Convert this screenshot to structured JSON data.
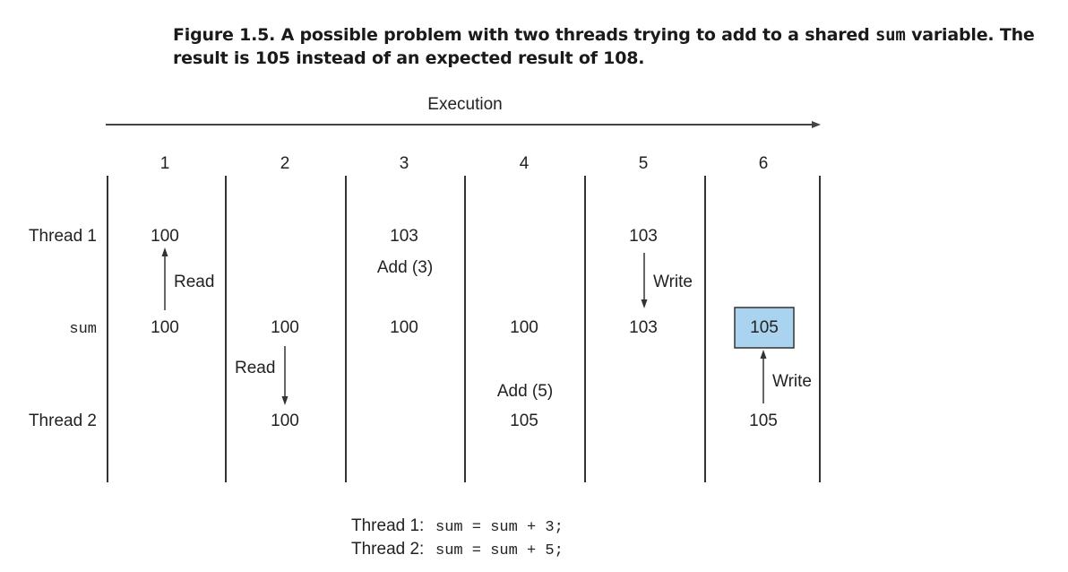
{
  "caption": {
    "prefix": "Figure 1.5. A possible problem with two threads trying to add to a shared ",
    "code": "sum",
    "suffix": " variable. The result is 105 instead of an expected result of 108."
  },
  "diagram": {
    "execution_label": "Execution",
    "steps": [
      "1",
      "2",
      "3",
      "4",
      "5",
      "6"
    ],
    "row_labels": {
      "thread1": "Thread 1",
      "sum": "sum",
      "thread2": "Thread 2"
    },
    "thread1_values": {
      "step1": "100",
      "step3": "103",
      "step5": "103"
    },
    "sum_values": {
      "step1": "100",
      "step2": "100",
      "step3": "100",
      "step4": "100",
      "step5": "103",
      "step6": "105"
    },
    "thread2_values": {
      "step2": "100",
      "step4": "105",
      "step6": "105"
    },
    "operations": {
      "step1_read": "Read",
      "step2_read": "Read",
      "step3_add": "Add (3)",
      "step4_add": "Add (5)",
      "step5_write": "Write",
      "step6_write": "Write"
    },
    "highlight_color": "#a9d3ee",
    "code_lines": [
      {
        "thread": "Thread 1:",
        "code": "sum = sum + 3;"
      },
      {
        "thread": "Thread 2:",
        "code": "sum = sum + 5;"
      }
    ]
  }
}
